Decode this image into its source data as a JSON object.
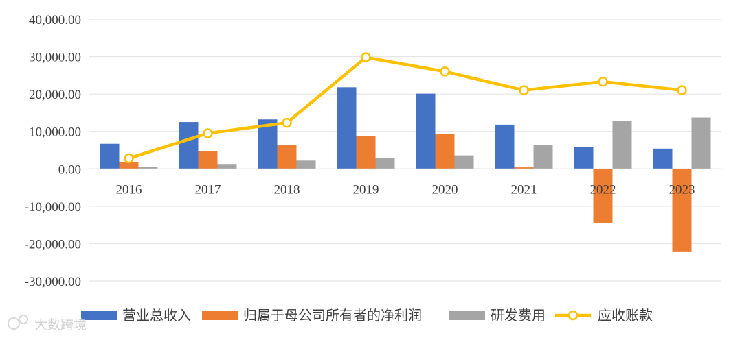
{
  "chart_data": {
    "type": "bar",
    "categories": [
      "2016",
      "2017",
      "2018",
      "2019",
      "2020",
      "2021",
      "2022",
      "2023"
    ],
    "ylim": [
      -30000,
      40000
    ],
    "yticks": [
      40000,
      30000,
      20000,
      10000,
      0,
      -10000,
      -20000,
      -30000
    ],
    "ytick_labels": [
      "40,000.00",
      "30,000.00",
      "20,000.00",
      "10,000.00",
      "0.00",
      "-10,000.00",
      "-20,000.00",
      "-30,000.00"
    ],
    "grid": true,
    "legend_position": "bottom",
    "series": [
      {
        "name": "营业总收入",
        "type": "bar",
        "color": "#4472C4",
        "values": [
          6700,
          12500,
          13200,
          21800,
          20100,
          11800,
          5900,
          5400
        ]
      },
      {
        "name": "归属于母公司所有者的净利润",
        "type": "bar",
        "color": "#ED7D31",
        "values": [
          1700,
          4800,
          6400,
          8800,
          9300,
          400,
          -14600,
          -22100
        ]
      },
      {
        "name": "研发费用",
        "type": "bar",
        "color": "#A5A5A5",
        "values": [
          500,
          1300,
          2200,
          2900,
          3600,
          6400,
          12800,
          13700
        ]
      },
      {
        "name": "应收账款",
        "type": "line",
        "color": "#FFC000",
        "values": [
          2800,
          9500,
          12300,
          29800,
          26000,
          21000,
          23300,
          21000
        ]
      }
    ]
  },
  "watermark": {
    "text": "大数跨境"
  }
}
